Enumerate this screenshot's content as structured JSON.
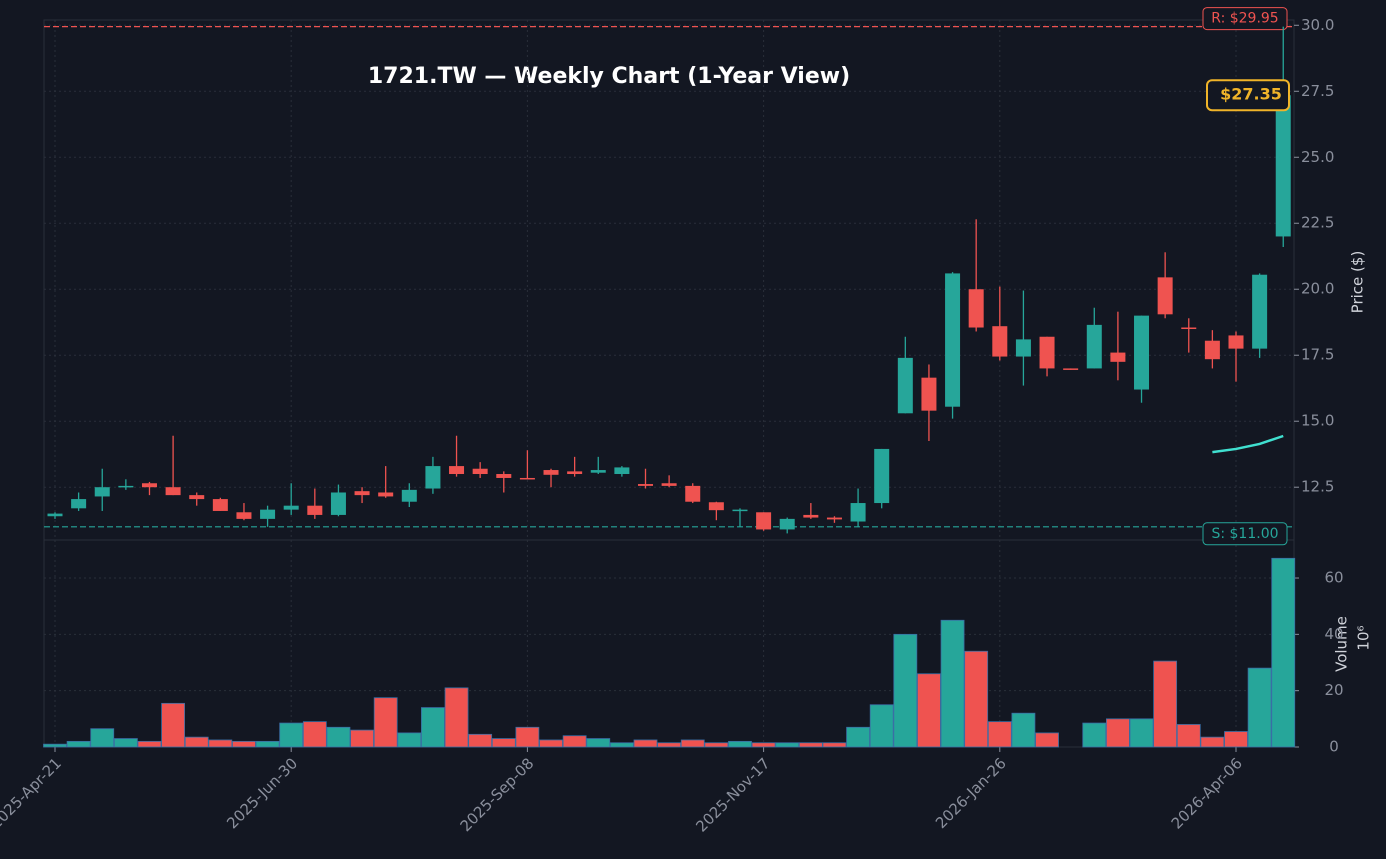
{
  "chart_data": {
    "type": "candlestick",
    "title": "1721.TW — Weekly Chart (1-Year View)",
    "categories": [
      "2025-Apr-21",
      null,
      null,
      null,
      null,
      null,
      null,
      null,
      null,
      null,
      "2025-Jun-30",
      null,
      null,
      null,
      null,
      null,
      null,
      null,
      null,
      null,
      "2025-Sep-08",
      null,
      null,
      null,
      null,
      null,
      null,
      null,
      null,
      null,
      "2025-Nov-17",
      null,
      null,
      null,
      null,
      null,
      null,
      null,
      null,
      null,
      "2026-Jan-26",
      null,
      null,
      null,
      null,
      null,
      null,
      null,
      null,
      null,
      "2026-Apr-06",
      null,
      null
    ],
    "open": [
      11.4,
      11.7,
      12.15,
      12.5,
      12.65,
      12.5,
      12.2,
      12.05,
      11.55,
      11.3,
      11.65,
      11.8,
      11.45,
      12.35,
      12.3,
      11.95,
      12.45,
      13.3,
      13.2,
      13.0,
      12.85,
      13.15,
      13.1,
      13.05,
      13.0,
      12.62,
      12.65,
      12.55,
      11.93,
      11.6,
      11.55,
      10.9,
      11.45,
      11.35,
      11.2,
      11.9,
      15.3,
      16.65,
      15.55,
      20.0,
      18.6,
      17.45,
      18.2,
      17.0,
      17.0,
      17.6,
      16.2,
      20.45,
      18.55,
      18.05,
      18.25,
      17.75,
      22.0
    ],
    "high": [
      11.55,
      12.3,
      13.2,
      12.8,
      12.7,
      14.45,
      12.3,
      12.1,
      11.9,
      11.8,
      12.65,
      12.45,
      12.6,
      12.5,
      13.3,
      12.65,
      13.65,
      14.45,
      13.45,
      13.1,
      13.9,
      13.2,
      13.65,
      13.65,
      13.3,
      13.2,
      12.95,
      12.65,
      11.95,
      11.7,
      11.55,
      11.35,
      11.9,
      11.4,
      12.45,
      13.95,
      18.2,
      17.15,
      20.65,
      22.65,
      20.1,
      19.95,
      18.2,
      17.0,
      19.3,
      19.15,
      19.0,
      21.4,
      18.9,
      18.45,
      18.4,
      20.6,
      29.95
    ],
    "low": [
      11.3,
      11.6,
      11.6,
      12.4,
      12.2,
      12.2,
      11.8,
      11.6,
      11.25,
      11.0,
      11.45,
      11.3,
      11.4,
      11.9,
      12.1,
      11.75,
      12.25,
      12.9,
      12.85,
      12.3,
      12.8,
      12.5,
      12.9,
      13.0,
      12.9,
      12.45,
      12.5,
      11.9,
      11.25,
      11.0,
      10.85,
      10.75,
      11.3,
      11.15,
      11.0,
      11.7,
      15.3,
      14.25,
      15.1,
      18.4,
      17.3,
      16.35,
      16.7,
      16.95,
      17.0,
      16.55,
      15.7,
      18.9,
      17.6,
      17.0,
      16.5,
      17.4,
      21.6
    ],
    "close": [
      11.5,
      12.05,
      12.5,
      12.55,
      12.5,
      12.2,
      12.05,
      11.6,
      11.3,
      11.65,
      11.8,
      11.45,
      12.3,
      12.2,
      12.15,
      12.4,
      13.3,
      13.0,
      13.0,
      12.85,
      12.82,
      12.97,
      13.0,
      13.15,
      13.25,
      12.55,
      12.55,
      11.95,
      11.63,
      11.65,
      10.9,
      11.3,
      11.35,
      11.28,
      11.9,
      13.95,
      17.4,
      15.4,
      20.6,
      18.55,
      17.45,
      18.1,
      17.0,
      16.97,
      18.65,
      17.25,
      19.0,
      19.05,
      18.5,
      17.35,
      17.75,
      20.55,
      27.35
    ],
    "volume": [
      1,
      2,
      6.5,
      3,
      2,
      15.5,
      3.5,
      2.5,
      2,
      2,
      8.5,
      9,
      7,
      6,
      17.5,
      5,
      14,
      21,
      4.5,
      3,
      7,
      2.5,
      4,
      3,
      1.5,
      2.5,
      1.5,
      2.5,
      1.5,
      2,
      1.5,
      1.5,
      1.5,
      1.5,
      7,
      15,
      40,
      26,
      45,
      34,
      9,
      12,
      5,
      0,
      8.5,
      10,
      10,
      30.5,
      8,
      3.5,
      5.5,
      28,
      67
    ],
    "overlay_line": {
      "color": "#40e0d0",
      "values": [
        null,
        null,
        null,
        null,
        null,
        null,
        null,
        null,
        null,
        null,
        null,
        null,
        null,
        null,
        null,
        null,
        null,
        null,
        null,
        null,
        null,
        null,
        null,
        null,
        null,
        null,
        null,
        null,
        null,
        null,
        null,
        null,
        null,
        null,
        null,
        null,
        null,
        null,
        null,
        null,
        null,
        null,
        null,
        null,
        null,
        null,
        null,
        null,
        null,
        13.83,
        13.95,
        14.14,
        14.44
      ]
    },
    "up_color": "#26a69a",
    "down_color": "#ef5350",
    "resistance": {
      "value": 29.95,
      "label": "R: $29.95",
      "color": "#ef5350"
    },
    "support": {
      "value": 11.0,
      "label": "S: $11.00",
      "color": "#26a69a"
    },
    "last_price": {
      "value": 27.35,
      "label": "$27.35",
      "color": "#f0b429"
    },
    "ylabel": "Price ($)",
    "ylim": [
      10.5,
      30.2
    ],
    "yticks": [
      12.5,
      {
        "value": 15,
        "label": "15.0"
      },
      17.5,
      {
        "value": 20,
        "label": "20.0"
      },
      22.5,
      {
        "value": 25,
        "label": "25.0"
      },
      27.5,
      {
        "value": 30,
        "label": "30.0"
      }
    ],
    "volume_label": "Volume",
    "volume_unit": "10⁶",
    "volume_ylim": [
      0,
      73.5
    ],
    "volume_yticks": [
      0,
      20,
      40,
      60
    ],
    "grid": true
  }
}
